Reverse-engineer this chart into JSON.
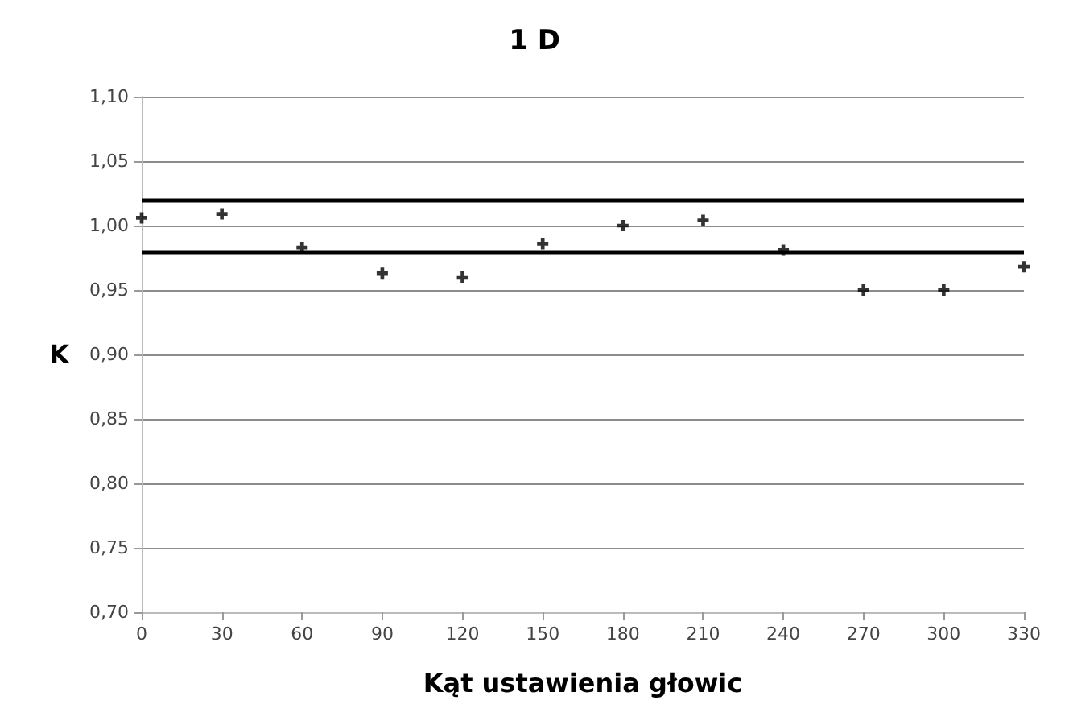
{
  "chart_data": {
    "type": "scatter",
    "title": "1 D",
    "xlabel": "Kąt ustawienia głowic",
    "ylabel": "K",
    "x": [
      0,
      30,
      60,
      90,
      120,
      150,
      180,
      210,
      240,
      270,
      300,
      330
    ],
    "values": [
      1.006,
      1.009,
      0.983,
      0.963,
      0.96,
      0.986,
      1.0,
      1.004,
      0.981,
      0.95,
      0.95,
      0.968
    ],
    "color": "#000000",
    "marker": "cross",
    "xlim": [
      0,
      330
    ],
    "xticks": [
      0,
      30,
      60,
      90,
      120,
      150,
      180,
      210,
      240,
      270,
      300,
      330
    ],
    "ylim": [
      0.7,
      1.1
    ],
    "yticks": [
      {
        "value": 0.7,
        "label": "0,70"
      },
      {
        "value": 0.75,
        "label": "0,75"
      },
      {
        "value": 0.8,
        "label": "0,80"
      },
      {
        "value": 0.85,
        "label": "0,85"
      },
      {
        "value": 0.9,
        "label": "0,90"
      },
      {
        "value": 0.95,
        "label": "0,95"
      },
      {
        "value": 1.0,
        "label": "1,00"
      },
      {
        "value": 1.05,
        "label": "1,05"
      },
      {
        "value": 1.1,
        "label": "1,10"
      }
    ],
    "ref_lines": [
      {
        "axis": "y",
        "value": 1.02,
        "label": null,
        "color": "#000000"
      },
      {
        "axis": "y",
        "value": 0.98,
        "label": null,
        "color": "#000000"
      }
    ],
    "grid": "y"
  }
}
